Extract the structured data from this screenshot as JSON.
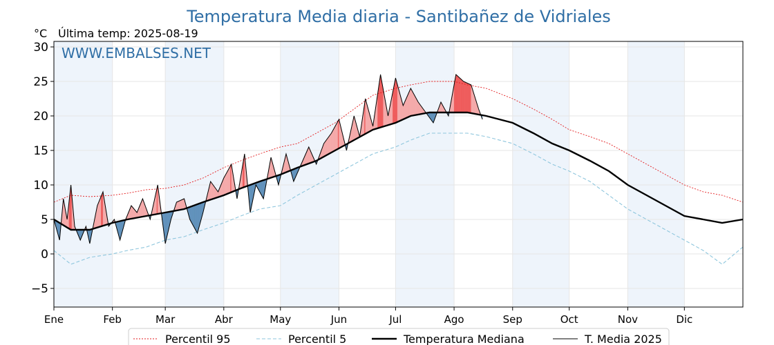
{
  "chart_data": {
    "type": "line",
    "title": "Temperatura Media diaria - Santibañez de Vidriales",
    "unit_label": "°C",
    "last_temp_label": "Última temp: 2025-08-19",
    "watermark": "WWW.EMBALSES.NET",
    "ylim": [
      -7.7,
      30.8
    ],
    "yticks": [
      "−5",
      "0",
      "5",
      "10",
      "15",
      "20",
      "25",
      "30"
    ],
    "ytick_values": [
      -5,
      0,
      5,
      10,
      15,
      20,
      25,
      30
    ],
    "xlim": [
      1,
      366
    ],
    "months": [
      "Ene",
      "Feb",
      "Mar",
      "Abr",
      "May",
      "Jun",
      "Jul",
      "Ago",
      "Sep",
      "Oct",
      "Nov",
      "Dic"
    ],
    "month_start_days": [
      1,
      32,
      60,
      91,
      121,
      152,
      182,
      213,
      244,
      274,
      305,
      335
    ],
    "grid": true,
    "legend_position": "bottom-center",
    "colors": {
      "title": "#2f6ea5",
      "p95": "#e31a1c",
      "p5": "#8ec6dd",
      "median": "#000000",
      "current": "#000000",
      "above_fill": "#f4a6a6",
      "above_strong_fill": "#ee5555",
      "below_fill": "#5b8db8",
      "month_band": "#eef4fb"
    },
    "series": [
      {
        "name": "Percentil 95",
        "style": "dotted",
        "x": [
          1,
          10,
          20,
          32,
          40,
          50,
          60,
          70,
          80,
          91,
          100,
          110,
          121,
          130,
          140,
          150,
          160,
          170,
          182,
          190,
          200,
          213,
          220,
          230,
          244,
          255,
          265,
          274,
          285,
          295,
          305,
          315,
          325,
          335,
          345,
          355,
          366
        ],
        "y": [
          7.5,
          8.5,
          8.3,
          8.5,
          8.8,
          9.3,
          9.5,
          10.0,
          11.0,
          12.5,
          13.5,
          14.5,
          15.5,
          16.0,
          17.5,
          19.0,
          21.0,
          23.0,
          24.0,
          24.5,
          25.0,
          25.0,
          24.5,
          24.0,
          22.5,
          21.0,
          19.5,
          18.0,
          17.0,
          16.0,
          14.5,
          13.0,
          11.5,
          10.0,
          9.0,
          8.5,
          7.5
        ]
      },
      {
        "name": "Percentil 5",
        "style": "dashed",
        "x": [
          1,
          10,
          20,
          32,
          40,
          50,
          60,
          70,
          80,
          91,
          100,
          110,
          121,
          130,
          140,
          150,
          160,
          170,
          182,
          190,
          200,
          213,
          220,
          230,
          244,
          255,
          265,
          274,
          285,
          295,
          305,
          315,
          325,
          335,
          345,
          355,
          366
        ],
        "y": [
          0.5,
          -1.5,
          -0.5,
          0.0,
          0.5,
          1.0,
          2.0,
          2.5,
          3.5,
          4.5,
          5.5,
          6.5,
          7.0,
          8.5,
          10.0,
          11.5,
          13.0,
          14.5,
          15.5,
          16.5,
          17.5,
          17.5,
          17.5,
          17.0,
          16.0,
          14.5,
          13.0,
          12.0,
          10.5,
          8.5,
          6.5,
          5.0,
          3.5,
          2.0,
          0.5,
          -1.5,
          1.0
        ]
      },
      {
        "name": "Temperatura Mediana",
        "style": "solid-bold",
        "x": [
          1,
          10,
          20,
          32,
          40,
          50,
          60,
          70,
          80,
          91,
          100,
          110,
          121,
          130,
          140,
          150,
          160,
          170,
          182,
          190,
          200,
          213,
          220,
          230,
          244,
          255,
          265,
          274,
          285,
          295,
          305,
          315,
          325,
          335,
          345,
          355,
          366
        ],
        "y": [
          5.0,
          3.5,
          3.5,
          4.5,
          5.0,
          5.5,
          6.0,
          6.5,
          7.5,
          8.5,
          9.5,
          10.5,
          11.5,
          12.5,
          13.5,
          15.0,
          16.5,
          18.0,
          19.0,
          20.0,
          20.5,
          20.5,
          20.5,
          20.0,
          19.0,
          17.5,
          16.0,
          15.0,
          13.5,
          12.0,
          10.0,
          8.5,
          7.0,
          5.5,
          5.0,
          4.5,
          5.0
        ]
      },
      {
        "name": "T. Media 2025",
        "style": "solid-thin",
        "x": [
          1,
          4,
          6,
          8,
          10,
          12,
          15,
          18,
          20,
          24,
          27,
          30,
          33,
          36,
          39,
          42,
          45,
          48,
          52,
          56,
          60,
          63,
          66,
          70,
          73,
          77,
          80,
          84,
          88,
          91,
          95,
          98,
          102,
          105,
          108,
          112,
          116,
          120,
          124,
          128,
          132,
          136,
          140,
          144,
          148,
          152,
          156,
          160,
          163,
          166,
          170,
          174,
          178,
          182,
          186,
          190,
          194,
          198,
          202,
          206,
          210,
          214,
          218,
          222,
          226,
          228
        ],
        "y": [
          5.0,
          2.0,
          8.0,
          5.0,
          10.0,
          4.0,
          2.0,
          4.0,
          1.5,
          7.0,
          9.0,
          4.0,
          5.0,
          2.0,
          5.0,
          7.0,
          6.0,
          8.0,
          5.0,
          10.0,
          1.5,
          5.0,
          7.5,
          8.0,
          5.0,
          3.0,
          6.0,
          10.5,
          9.0,
          11.0,
          13.0,
          8.0,
          14.5,
          6.0,
          10.0,
          8.0,
          14.0,
          10.0,
          14.5,
          10.5,
          13.0,
          15.5,
          13.0,
          16.0,
          17.5,
          19.5,
          15.0,
          20.0,
          17.0,
          22.5,
          18.5,
          26.0,
          20.0,
          25.5,
          21.5,
          24.0,
          22.0,
          20.5,
          19.0,
          22.0,
          20.0,
          26.0,
          25.0,
          24.5,
          21.0,
          19.5
        ]
      }
    ]
  }
}
